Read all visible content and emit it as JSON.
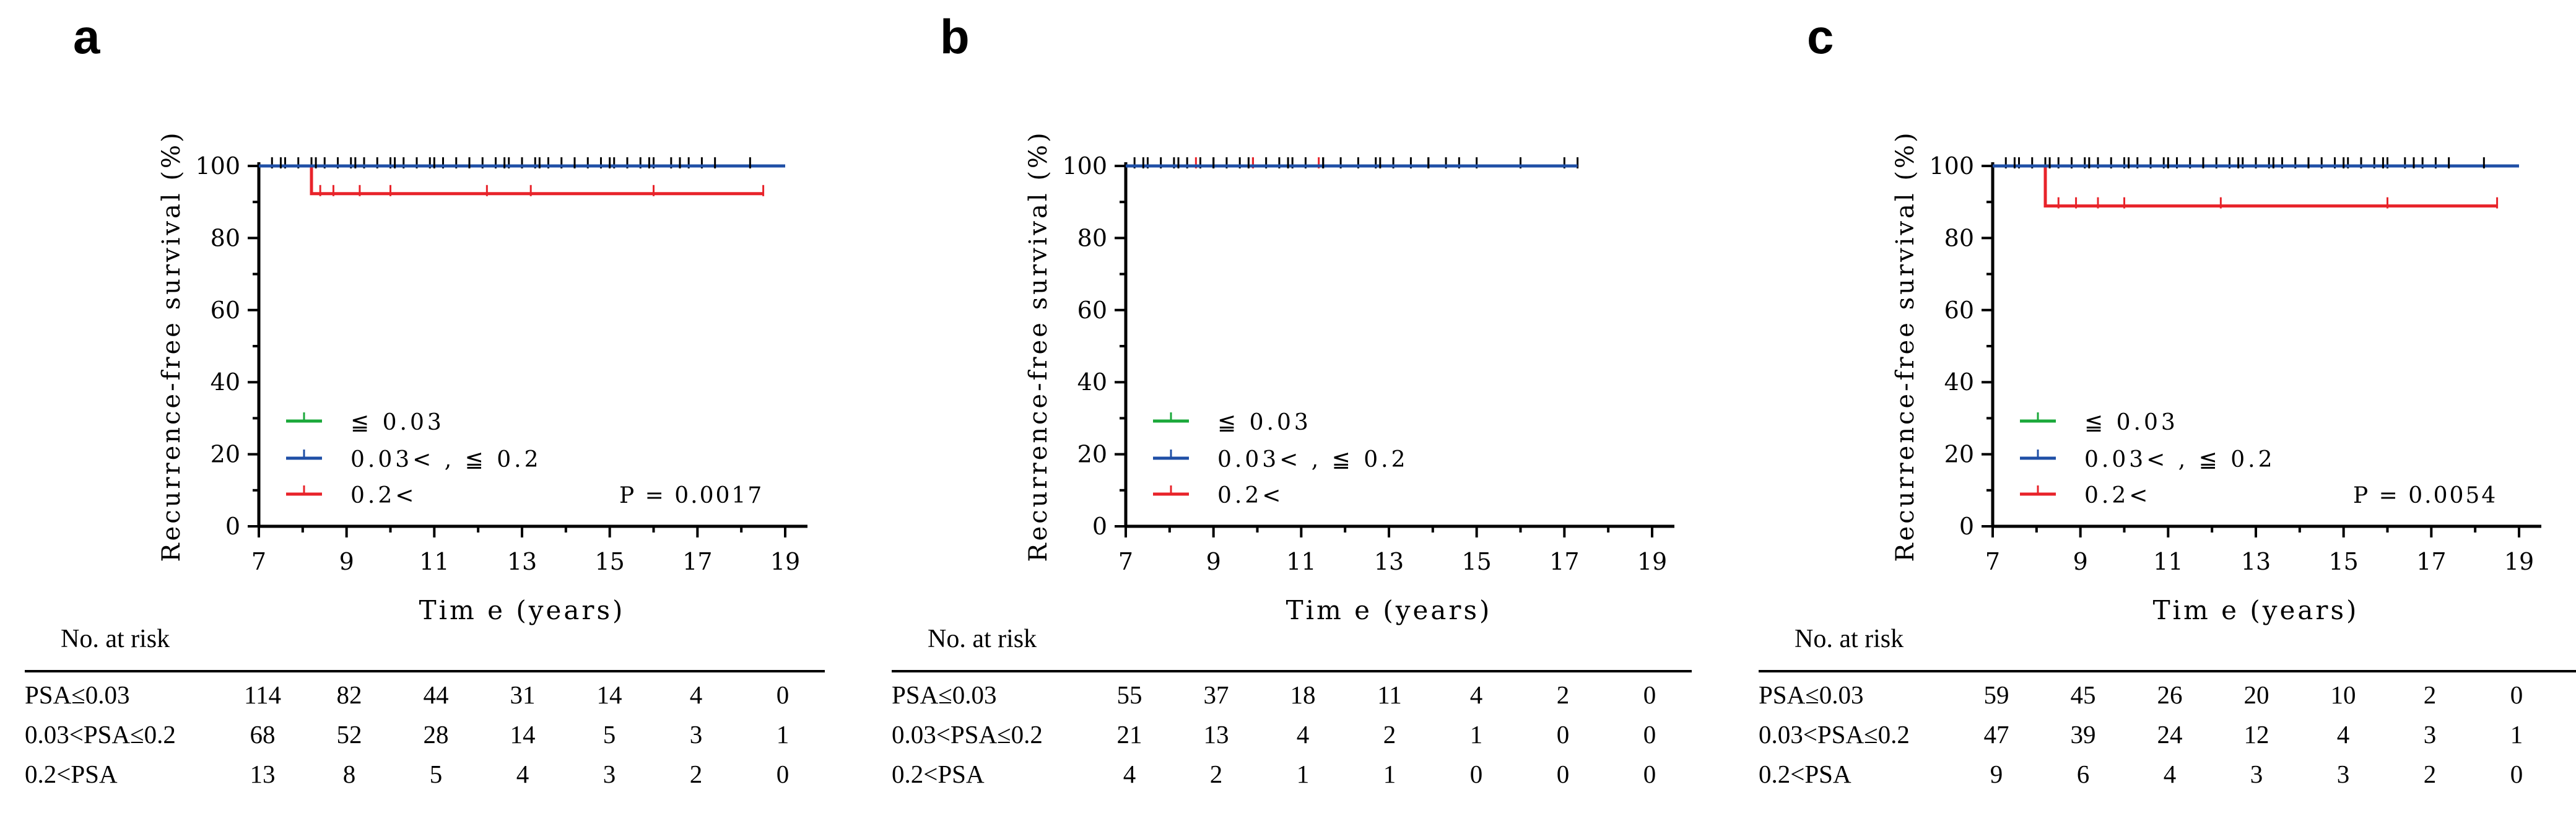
{
  "panels": [
    {
      "letter": "a",
      "p_value": "P = 0.0017",
      "risk_title": "No. at risk",
      "risk_rows": [
        {
          "label": "PSA≤0.03",
          "values": [
            "114",
            "82",
            "44",
            "31",
            "14",
            "4",
            "0"
          ]
        },
        {
          "label": "0.03<PSA≤0.2",
          "values": [
            "68",
            "52",
            "28",
            "14",
            "5",
            "3",
            "1"
          ]
        },
        {
          "label": "0.2<PSA",
          "values": [
            "13",
            "8",
            "5",
            "4",
            "3",
            "2",
            "0"
          ]
        }
      ]
    },
    {
      "letter": "b",
      "p_value": "",
      "risk_title": "No. at risk",
      "risk_rows": [
        {
          "label": "PSA≤0.03",
          "values": [
            "55",
            "37",
            "18",
            "11",
            "4",
            "2",
            "0"
          ]
        },
        {
          "label": "0.03<PSA≤0.2",
          "values": [
            "21",
            "13",
            "4",
            "2",
            "1",
            "0",
            "0"
          ]
        },
        {
          "label": "0.2<PSA",
          "values": [
            "4",
            "2",
            "1",
            "1",
            "0",
            "0",
            "0"
          ]
        }
      ]
    },
    {
      "letter": "c",
      "p_value": "P = 0.0054",
      "risk_title": "No. at risk",
      "risk_rows": [
        {
          "label": "PSA≤0.03",
          "values": [
            "59",
            "45",
            "26",
            "20",
            "10",
            "2",
            "0"
          ]
        },
        {
          "label": "0.03<PSA≤0.2",
          "values": [
            "47",
            "39",
            "24",
            "12",
            "4",
            "3",
            "1"
          ]
        },
        {
          "label": "0.2<PSA",
          "values": [
            "9",
            "6",
            "4",
            "3",
            "3",
            "2",
            "0"
          ]
        }
      ]
    }
  ],
  "colors": {
    "green": "#1aa83a",
    "blue": "#1f4fa6",
    "red": "#e8232a",
    "axis": "#000000"
  },
  "chart_data": [
    {
      "type": "line",
      "panel": "a",
      "title": "",
      "xlabel": "Tim e (years)",
      "ylabel": "Recurrence-free survival (%)",
      "xlim": [
        7,
        19
      ],
      "ylim": [
        0,
        100
      ],
      "xticks": [
        7,
        9,
        11,
        13,
        15,
        17,
        19
      ],
      "yticks": [
        0,
        20,
        40,
        60,
        80,
        100
      ],
      "grid": false,
      "legend_position": "bottom-left",
      "series": [
        {
          "name": "≦ 0.03",
          "color": "green",
          "points": [
            [
              7,
              100
            ],
            [
              17.3,
              100
            ]
          ],
          "censor": [
            7.3,
            7.6,
            7.9,
            8.2,
            8.5,
            8.8,
            9.1,
            9.4,
            9.7,
            10.0,
            10.3,
            10.6,
            10.9,
            11.2,
            11.5,
            11.8,
            12.1,
            12.4,
            12.7,
            13.0,
            13.3,
            13.6,
            13.9,
            14.2,
            14.5,
            14.8,
            15.1,
            15.4,
            15.7,
            16.0,
            16.4,
            16.8,
            17.1
          ]
        },
        {
          "name": "0.03< , ≦ 0.2",
          "color": "blue",
          "points": [
            [
              7,
              100
            ],
            [
              19,
              100
            ]
          ],
          "censor": [
            7.5,
            8.3,
            9.2,
            10.1,
            11.0,
            11.8,
            12.6,
            13.4,
            14.2,
            15.0,
            15.9,
            16.6,
            17.4,
            18.2
          ]
        },
        {
          "name": "0.2<",
          "color": "red",
          "points": [
            [
              7,
              100
            ],
            [
              8.2,
              100
            ],
            [
              8.2,
              92.3
            ],
            [
              18.5,
              92.3
            ]
          ],
          "censor": [
            8.4,
            8.7,
            9.3,
            10.0,
            12.2,
            13.2,
            16.0,
            18.5
          ]
        }
      ]
    },
    {
      "type": "line",
      "panel": "b",
      "title": "",
      "xlabel": "Tim e (years)",
      "ylabel": "Recurrence-free survival (%)",
      "xlim": [
        7,
        19
      ],
      "ylim": [
        0,
        100
      ],
      "xticks": [
        7,
        9,
        11,
        13,
        15,
        17,
        19
      ],
      "yticks": [
        0,
        20,
        40,
        60,
        80,
        100
      ],
      "grid": false,
      "legend_position": "bottom-left",
      "series": [
        {
          "name": "≦ 0.03",
          "color": "green",
          "points": [
            [
              7,
              100
            ],
            [
              17.3,
              100
            ]
          ],
          "censor": [
            7.2,
            7.5,
            7.8,
            8.1,
            8.4,
            8.7,
            9.0,
            9.3,
            9.6,
            9.9,
            10.2,
            10.5,
            10.8,
            11.1,
            11.5,
            11.9,
            12.3,
            12.7,
            13.1,
            13.5,
            13.9,
            14.3,
            14.6,
            15.0,
            16.0,
            17.0,
            17.3
          ]
        },
        {
          "name": "0.03< , ≦ 0.2",
          "color": "blue",
          "points": [
            [
              7,
              100
            ],
            [
              17.3,
              100
            ]
          ],
          "censor": [
            7.4,
            8.2,
            9.0,
            9.8,
            10.7,
            11.5,
            12.8,
            13.9
          ]
        },
        {
          "name": "0.2<",
          "color": "red",
          "points": [
            [
              7,
              100
            ],
            [
              17.3,
              100
            ]
          ],
          "censor": [
            8.6,
            9.9,
            11.4
          ]
        }
      ]
    },
    {
      "type": "line",
      "panel": "c",
      "title": "",
      "xlabel": "Tim e (years)",
      "ylabel": "Recurrence-free survival (%)",
      "xlim": [
        7,
        19
      ],
      "ylim": [
        0,
        100
      ],
      "xticks": [
        7,
        9,
        11,
        13,
        15,
        17,
        19
      ],
      "yticks": [
        0,
        20,
        40,
        60,
        80,
        100
      ],
      "grid": false,
      "legend_position": "bottom-left",
      "series": [
        {
          "name": "≦ 0.03",
          "color": "green",
          "points": [
            [
              7,
              100
            ],
            [
              17.3,
              100
            ]
          ],
          "censor": [
            7.3,
            7.6,
            7.9,
            8.2,
            8.5,
            8.8,
            9.1,
            9.4,
            9.7,
            10.0,
            10.3,
            10.6,
            10.9,
            11.2,
            11.5,
            11.8,
            12.1,
            12.4,
            12.7,
            13.0,
            13.3,
            13.6,
            13.9,
            14.2,
            14.5,
            14.8,
            15.1,
            15.4,
            15.7,
            16.0,
            16.4,
            16.8,
            17.1
          ]
        },
        {
          "name": "0.03< , ≦ 0.2",
          "color": "blue",
          "points": [
            [
              7,
              100
            ],
            [
              19,
              100
            ]
          ],
          "censor": [
            7.5,
            8.3,
            9.2,
            10.1,
            11.0,
            11.8,
            12.6,
            13.4,
            14.2,
            15.0,
            15.9,
            16.6,
            17.4,
            18.2
          ]
        },
        {
          "name": "0.2<",
          "color": "red",
          "points": [
            [
              7,
              100
            ],
            [
              8.2,
              100
            ],
            [
              8.2,
              88.9
            ],
            [
              18.5,
              88.9
            ]
          ],
          "censor": [
            8.5,
            8.9,
            9.4,
            10.0,
            12.2,
            16.0,
            18.5
          ]
        }
      ]
    }
  ]
}
